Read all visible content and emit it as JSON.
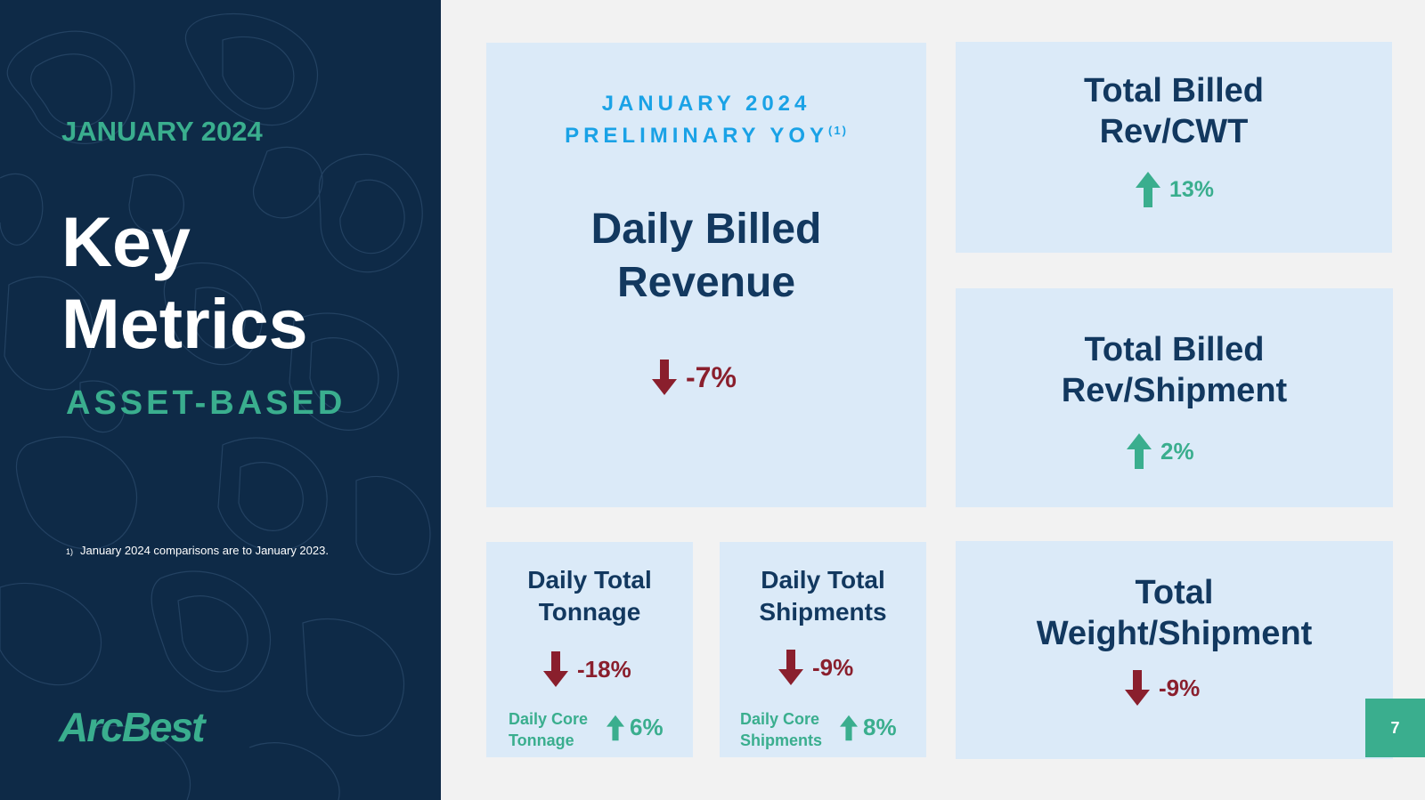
{
  "colors": {
    "navy_panel": "#0e2a47",
    "teal_accent": "#3aae8e",
    "card_bg": "#dbeaf8",
    "title_navy": "#12385f",
    "down_red": "#8a1f2d",
    "kicker_blue": "#1aa2e6"
  },
  "left_panel": {
    "month": "JANUARY 2024",
    "title_line1": "Key",
    "title_line2": "Metrics",
    "subtitle": "ASSET-BASED",
    "footnote_marker": "1)",
    "footnote_text": "January 2024 comparisons are to January 2023.",
    "logo_text": "ArcBest"
  },
  "main_card": {
    "kicker_line1": "JANUARY 2024",
    "kicker_line2": "PRELIMINARY YOY",
    "kicker_sup": "(1)",
    "title_line1": "Daily Billed",
    "title_line2": "Revenue",
    "direction": "down",
    "value": "-7%"
  },
  "rev_cwt": {
    "title_line1": "Total Billed",
    "title_line2": "Rev/CWT",
    "direction": "up",
    "value": "13%"
  },
  "rev_shipment": {
    "title_line1": "Total Billed",
    "title_line2": "Rev/Shipment",
    "direction": "up",
    "value": "2%"
  },
  "tonnage": {
    "title_line1": "Daily Total",
    "title_line2": "Tonnage",
    "direction": "down",
    "value": "-18%",
    "core_line1": "Daily Core",
    "core_line2": "Tonnage",
    "core_direction": "up",
    "core_value": "6%"
  },
  "shipments": {
    "title_line1": "Daily Total",
    "title_line2": "Shipments",
    "direction": "down",
    "value": "-9%",
    "core_line1": "Daily Core",
    "core_line2": "Shipments",
    "core_direction": "up",
    "core_value": "8%"
  },
  "weight": {
    "title_line1": "Total",
    "title_line2": "Weight/Shipment",
    "direction": "down",
    "value": "-9%"
  },
  "page_number": "7",
  "icons": [
    "arrow-up-icon",
    "arrow-down-icon"
  ]
}
